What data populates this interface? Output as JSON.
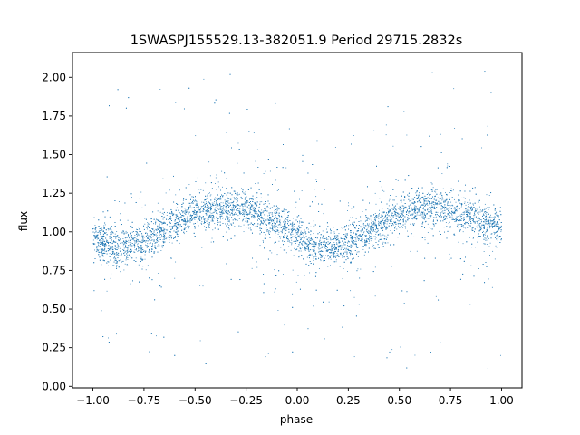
{
  "chart_data": {
    "type": "scatter",
    "title": "1SWASPJ155529.13-382051.9 Period 29715.2832s",
    "xlabel": "phase",
    "ylabel": "flux",
    "xlim": [
      -1.1,
      1.1
    ],
    "ylim": [
      -0.01,
      2.16
    ],
    "xticks": [
      -1.0,
      -0.75,
      -0.5,
      -0.25,
      0.0,
      0.25,
      0.5,
      0.75,
      1.0
    ],
    "xtick_labels": [
      "−1.00",
      "−0.75",
      "−0.50",
      "−0.25",
      "0.00",
      "0.25",
      "0.50",
      "0.75",
      "1.00"
    ],
    "yticks": [
      0.0,
      0.25,
      0.5,
      0.75,
      1.0,
      1.25,
      1.5,
      1.75,
      2.0
    ],
    "ytick_labels": [
      "0.00",
      "0.25",
      "0.50",
      "0.75",
      "1.00",
      "1.25",
      "1.50",
      "1.75",
      "2.00"
    ],
    "grid": false,
    "legend": false,
    "marker_color": "#1f77b4",
    "series": [
      {
        "phase_range": [
          -1.0,
          1.0
        ],
        "trend_phase": [
          -1.0,
          -0.9,
          -0.8,
          -0.7,
          -0.6,
          -0.5,
          -0.4,
          -0.3,
          -0.2,
          -0.1,
          0.0,
          0.1,
          0.2,
          0.3,
          0.4,
          0.5,
          0.6,
          0.7,
          0.8,
          0.9,
          1.0
        ],
        "trend_flux": [
          0.97,
          0.9,
          0.91,
          0.98,
          1.06,
          1.12,
          1.15,
          1.16,
          1.12,
          1.05,
          0.97,
          0.89,
          0.9,
          0.97,
          1.05,
          1.11,
          1.15,
          1.16,
          1.12,
          1.06,
          1.03
        ],
        "typical_scatter": 0.06,
        "outlier_flux_range": [
          0.1,
          2.05
        ]
      }
    ]
  }
}
